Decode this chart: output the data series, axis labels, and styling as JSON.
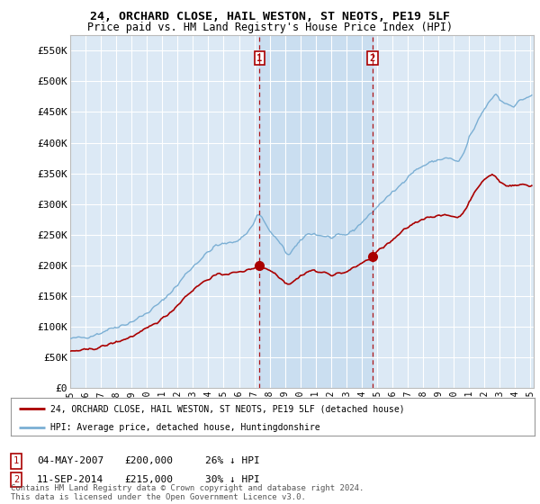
{
  "title": "24, ORCHARD CLOSE, HAIL WESTON, ST NEOTS, PE19 5LF",
  "subtitle": "Price paid vs. HM Land Registry's House Price Index (HPI)",
  "background_color": "#ffffff",
  "plot_bg_color": "#dce9f5",
  "grid_color": "#ffffff",
  "shade_color": "#c8ddf0",
  "ylim": [
    0,
    575000
  ],
  "yticks": [
    0,
    50000,
    100000,
    150000,
    200000,
    250000,
    300000,
    350000,
    400000,
    450000,
    500000,
    550000
  ],
  "ytick_labels": [
    "£0",
    "£50K",
    "£100K",
    "£150K",
    "£200K",
    "£250K",
    "£300K",
    "£350K",
    "£400K",
    "£450K",
    "£500K",
    "£550K"
  ],
  "sale1_date": 2007.34,
  "sale1_price": 200000,
  "sale2_date": 2014.7,
  "sale2_price": 215000,
  "legend_line1": "24, ORCHARD CLOSE, HAIL WESTON, ST NEOTS, PE19 5LF (detached house)",
  "legend_line2": "HPI: Average price, detached house, Huntingdonshire",
  "footer": "Contains HM Land Registry data © Crown copyright and database right 2024.\nThis data is licensed under the Open Government Licence v3.0.",
  "red_color": "#aa0000",
  "blue_color": "#7bafd4",
  "xlim_start": 1995.0,
  "xlim_end": 2025.2
}
